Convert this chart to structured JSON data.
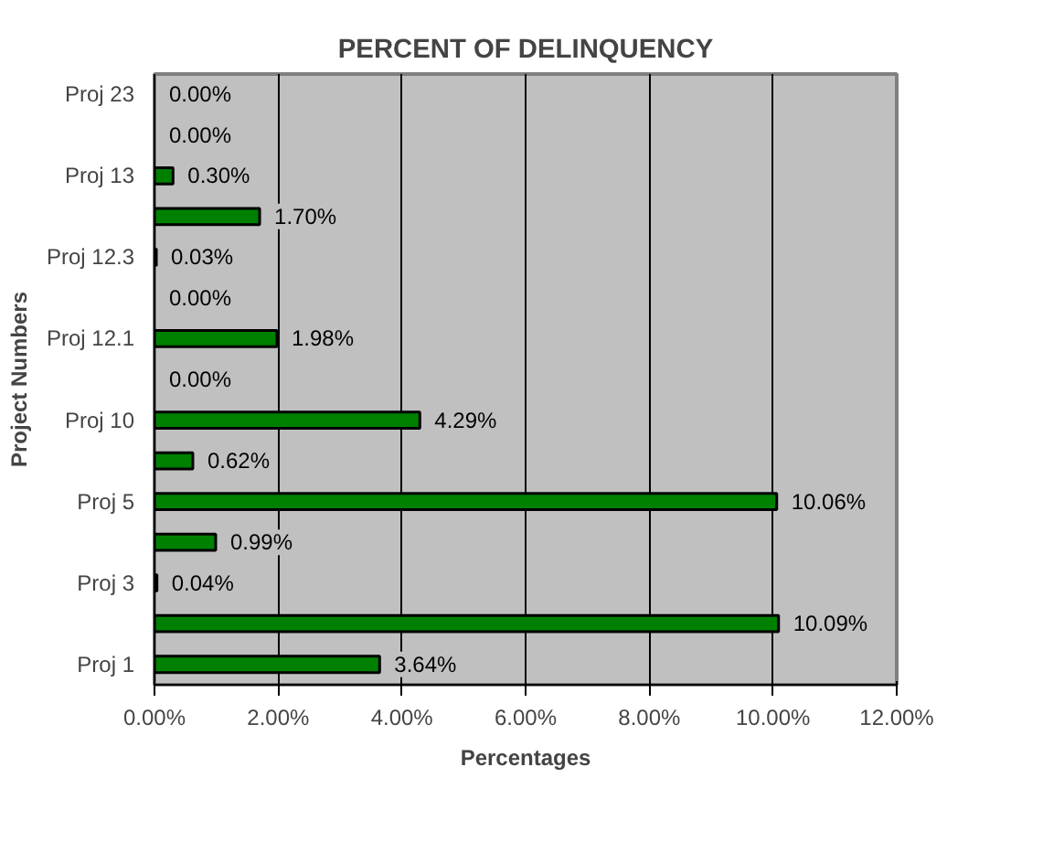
{
  "chart_data": {
    "type": "bar",
    "orientation": "horizontal",
    "title": "PERCENT OF DELINQUENCY",
    "xlabel": "Percentages",
    "ylabel": "Project Numbers",
    "categories": [
      "Proj 23",
      null,
      "Proj 13",
      null,
      "Proj 12.3",
      null,
      "Proj 12.1",
      null,
      "Proj 10",
      null,
      "Proj 5",
      null,
      "Proj 3",
      null,
      "Proj 1"
    ],
    "values": [
      0.0,
      0.0,
      0.3,
      1.7,
      0.03,
      0.0,
      1.98,
      0.0,
      4.29,
      0.62,
      10.06,
      0.99,
      0.04,
      10.09,
      3.64
    ],
    "value_labels": [
      "0.00%",
      "0.00%",
      "0.30%",
      "1.70%",
      "0.03%",
      "0.00%",
      "1.98%",
      "0.00%",
      "4.29%",
      "0.62%",
      "10.06%",
      "0.99%",
      "0.04%",
      "10.09%",
      "3.64%"
    ],
    "color": "#008000",
    "xlim": [
      0,
      12
    ],
    "xticks": [
      {
        "value": 0,
        "label": "0.00%"
      },
      {
        "value": 2,
        "label": "2.00%"
      },
      {
        "value": 4,
        "label": "4.00%"
      },
      {
        "value": 6,
        "label": "6.00%"
      },
      {
        "value": 8,
        "label": "8.00%"
      },
      {
        "value": 10,
        "label": "10.00%"
      },
      {
        "value": 12,
        "label": "12.00%"
      }
    ],
    "grid": "x"
  }
}
